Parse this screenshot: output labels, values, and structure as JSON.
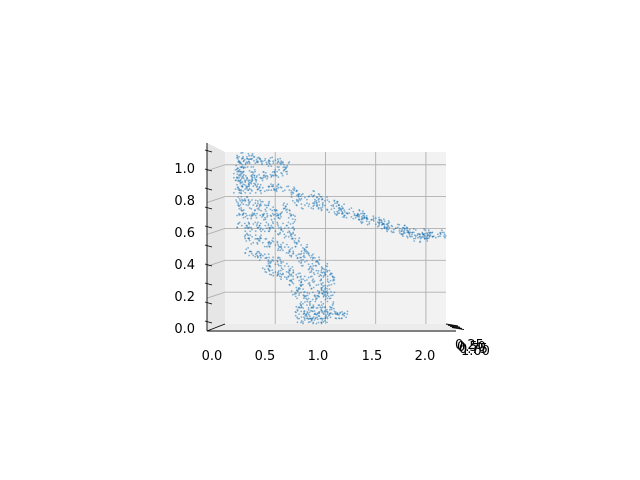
{
  "chart_data": {
    "type": "scatter",
    "projection": "3d",
    "series": [
      {
        "color": "#1f77b4",
        "marker_alpha": 0.55,
        "points": [
          [
            0.12,
            0.96
          ],
          [
            0.13,
            1.0
          ],
          [
            0.14,
            1.06
          ],
          [
            0.15,
            0.98
          ],
          [
            0.16,
            1.04
          ],
          [
            0.18,
            1.0
          ],
          [
            0.2,
            1.05
          ],
          [
            0.22,
            1.02
          ],
          [
            0.25,
            1.04
          ],
          [
            0.28,
            1.0
          ],
          [
            0.3,
            1.05
          ],
          [
            0.33,
            1.02
          ],
          [
            0.36,
            1.03
          ],
          [
            0.4,
            1.01
          ],
          [
            0.44,
            1.03
          ],
          [
            0.48,
            1.01
          ],
          [
            0.52,
            1.02
          ],
          [
            0.56,
            1.0
          ],
          [
            0.6,
            1.0
          ],
          [
            0.62,
            0.98
          ],
          [
            0.58,
            0.96
          ],
          [
            0.54,
            0.95
          ],
          [
            0.5,
            0.94
          ],
          [
            0.46,
            0.95
          ],
          [
            0.42,
            0.94
          ],
          [
            0.38,
            0.93
          ],
          [
            0.34,
            0.92
          ],
          [
            0.3,
            0.9
          ],
          [
            0.27,
            0.89
          ],
          [
            0.24,
            0.88
          ],
          [
            0.2,
            0.9
          ],
          [
            0.18,
            0.92
          ],
          [
            0.15,
            0.9
          ],
          [
            0.13,
            0.88
          ],
          [
            0.12,
            0.92
          ],
          [
            0.14,
            0.94
          ],
          [
            0.16,
            0.96
          ],
          [
            0.22,
            0.97
          ],
          [
            0.26,
            0.95
          ],
          [
            0.3,
            0.94
          ],
          [
            0.12,
            0.84
          ],
          [
            0.14,
            0.86
          ],
          [
            0.17,
            0.84
          ],
          [
            0.2,
            0.86
          ],
          [
            0.24,
            0.84
          ],
          [
            0.28,
            0.86
          ],
          [
            0.32,
            0.84
          ],
          [
            0.36,
            0.86
          ],
          [
            0.4,
            0.85
          ],
          [
            0.45,
            0.86
          ],
          [
            0.5,
            0.85
          ],
          [
            0.55,
            0.86
          ],
          [
            0.6,
            0.85
          ],
          [
            0.65,
            0.84
          ],
          [
            0.7,
            0.83
          ],
          [
            0.75,
            0.82
          ],
          [
            0.8,
            0.8
          ],
          [
            0.85,
            0.82
          ],
          [
            0.9,
            0.8
          ],
          [
            0.95,
            0.78
          ],
          [
            1.0,
            0.78
          ],
          [
            1.05,
            0.76
          ],
          [
            1.1,
            0.75
          ],
          [
            1.15,
            0.74
          ],
          [
            1.2,
            0.72
          ],
          [
            1.25,
            0.71
          ],
          [
            1.3,
            0.7
          ],
          [
            1.35,
            0.69
          ],
          [
            1.4,
            0.68
          ],
          [
            1.45,
            0.66
          ],
          [
            1.5,
            0.65
          ],
          [
            1.55,
            0.64
          ],
          [
            1.6,
            0.63
          ],
          [
            1.65,
            0.62
          ],
          [
            1.7,
            0.61
          ],
          [
            1.75,
            0.6
          ],
          [
            1.8,
            0.6
          ],
          [
            1.85,
            0.59
          ],
          [
            1.9,
            0.58
          ],
          [
            1.95,
            0.58
          ],
          [
            2.0,
            0.57
          ],
          [
            2.05,
            0.56
          ],
          [
            2.1,
            0.56
          ],
          [
            2.15,
            0.56
          ],
          [
            2.18,
            0.57
          ],
          [
            0.7,
            0.78
          ],
          [
            0.75,
            0.76
          ],
          [
            0.8,
            0.74
          ],
          [
            0.85,
            0.74
          ],
          [
            0.9,
            0.75
          ],
          [
            0.95,
            0.74
          ],
          [
            1.0,
            0.73
          ],
          [
            1.05,
            0.72
          ],
          [
            1.1,
            0.71
          ],
          [
            1.15,
            0.7
          ],
          [
            1.2,
            0.69
          ],
          [
            1.25,
            0.68
          ],
          [
            1.3,
            0.67
          ],
          [
            1.35,
            0.66
          ],
          [
            1.4,
            0.65
          ],
          [
            1.45,
            0.64
          ],
          [
            1.5,
            0.63
          ],
          [
            1.55,
            0.62
          ],
          [
            1.6,
            0.61
          ],
          [
            1.65,
            0.6
          ],
          [
            1.7,
            0.59
          ],
          [
            1.75,
            0.58
          ],
          [
            1.8,
            0.57
          ],
          [
            1.85,
            0.56
          ],
          [
            1.9,
            0.56
          ],
          [
            1.95,
            0.55
          ],
          [
            2.0,
            0.55
          ],
          [
            2.05,
            0.54
          ],
          [
            1.92,
            0.54
          ],
          [
            1.98,
            0.53
          ],
          [
            0.68,
            0.7
          ],
          [
            0.66,
            0.66
          ],
          [
            0.64,
            0.62
          ],
          [
            0.65,
            0.58
          ],
          [
            0.62,
            0.74
          ],
          [
            0.58,
            0.72
          ],
          [
            0.55,
            0.7
          ],
          [
            0.52,
            0.68
          ],
          [
            0.13,
            0.78
          ],
          [
            0.15,
            0.76
          ],
          [
            0.17,
            0.74
          ],
          [
            0.2,
            0.78
          ],
          [
            0.24,
            0.76
          ],
          [
            0.28,
            0.74
          ],
          [
            0.32,
            0.76
          ],
          [
            0.36,
            0.74
          ],
          [
            0.4,
            0.75
          ],
          [
            0.44,
            0.73
          ],
          [
            0.14,
            0.7
          ],
          [
            0.18,
            0.7
          ],
          [
            0.22,
            0.68
          ],
          [
            0.26,
            0.7
          ],
          [
            0.3,
            0.68
          ],
          [
            0.34,
            0.7
          ],
          [
            0.38,
            0.69
          ],
          [
            0.42,
            0.67
          ],
          [
            0.46,
            0.7
          ],
          [
            0.5,
            0.66
          ],
          [
            0.16,
            0.62
          ],
          [
            0.2,
            0.62
          ],
          [
            0.24,
            0.6
          ],
          [
            0.28,
            0.62
          ],
          [
            0.32,
            0.6
          ],
          [
            0.36,
            0.62
          ],
          [
            0.4,
            0.6
          ],
          [
            0.44,
            0.62
          ],
          [
            0.48,
            0.6
          ],
          [
            0.52,
            0.58
          ],
          [
            0.56,
            0.62
          ],
          [
            0.6,
            0.6
          ],
          [
            0.63,
            0.56
          ],
          [
            0.66,
            0.54
          ],
          [
            0.7,
            0.52
          ],
          [
            0.74,
            0.5
          ],
          [
            0.78,
            0.48
          ],
          [
            0.8,
            0.46
          ],
          [
            0.82,
            0.44
          ],
          [
            0.84,
            0.42
          ],
          [
            0.2,
            0.55
          ],
          [
            0.24,
            0.54
          ],
          [
            0.28,
            0.52
          ],
          [
            0.32,
            0.54
          ],
          [
            0.36,
            0.52
          ],
          [
            0.4,
            0.5
          ],
          [
            0.44,
            0.52
          ],
          [
            0.48,
            0.5
          ],
          [
            0.52,
            0.48
          ],
          [
            0.56,
            0.5
          ],
          [
            0.6,
            0.48
          ],
          [
            0.64,
            0.46
          ],
          [
            0.68,
            0.44
          ],
          [
            0.72,
            0.42
          ],
          [
            0.76,
            0.4
          ],
          [
            0.8,
            0.38
          ],
          [
            0.84,
            0.36
          ],
          [
            0.88,
            0.34
          ],
          [
            0.92,
            0.32
          ],
          [
            0.96,
            0.3
          ],
          [
            0.24,
            0.46
          ],
          [
            0.28,
            0.44
          ],
          [
            0.32,
            0.42
          ],
          [
            0.36,
            0.44
          ],
          [
            0.4,
            0.42
          ],
          [
            0.44,
            0.4
          ],
          [
            0.48,
            0.38
          ],
          [
            0.52,
            0.4
          ],
          [
            0.56,
            0.38
          ],
          [
            0.6,
            0.36
          ],
          [
            0.64,
            0.34
          ],
          [
            0.68,
            0.32
          ],
          [
            0.72,
            0.3
          ],
          [
            0.76,
            0.28
          ],
          [
            0.8,
            0.26
          ],
          [
            0.84,
            0.28
          ],
          [
            0.88,
            0.24
          ],
          [
            0.92,
            0.26
          ],
          [
            0.96,
            0.22
          ],
          [
            1.0,
            0.24
          ],
          [
            0.4,
            0.36
          ],
          [
            0.44,
            0.34
          ],
          [
            0.48,
            0.32
          ],
          [
            0.52,
            0.3
          ],
          [
            0.56,
            0.32
          ],
          [
            0.6,
            0.3
          ],
          [
            0.64,
            0.28
          ],
          [
            0.68,
            0.26
          ],
          [
            0.72,
            0.24
          ],
          [
            0.76,
            0.22
          ],
          [
            0.9,
            0.4
          ],
          [
            0.94,
            0.38
          ],
          [
            0.98,
            0.36
          ],
          [
            1.0,
            0.34
          ],
          [
            1.02,
            0.32
          ],
          [
            1.04,
            0.3
          ],
          [
            1.06,
            0.28
          ],
          [
            1.05,
            0.26
          ],
          [
            1.02,
            0.22
          ],
          [
            1.0,
            0.2
          ],
          [
            0.7,
            0.2
          ],
          [
            0.74,
            0.18
          ],
          [
            0.78,
            0.16
          ],
          [
            0.82,
            0.18
          ],
          [
            0.86,
            0.16
          ],
          [
            0.9,
            0.18
          ],
          [
            0.94,
            0.16
          ],
          [
            0.98,
            0.18
          ],
          [
            1.02,
            0.16
          ],
          [
            1.06,
            0.18
          ],
          [
            0.72,
            0.12
          ],
          [
            0.76,
            0.1
          ],
          [
            0.8,
            0.12
          ],
          [
            0.84,
            0.1
          ],
          [
            0.88,
            0.12
          ],
          [
            0.92,
            0.1
          ],
          [
            0.96,
            0.12
          ],
          [
            1.0,
            0.1
          ],
          [
            1.04,
            0.12
          ],
          [
            1.08,
            0.08
          ],
          [
            0.74,
            0.06
          ],
          [
            0.78,
            0.05
          ],
          [
            0.82,
            0.06
          ],
          [
            0.86,
            0.05
          ],
          [
            0.9,
            0.06
          ],
          [
            0.94,
            0.05
          ],
          [
            0.98,
            0.06
          ],
          [
            1.02,
            0.05
          ],
          [
            1.06,
            0.06
          ],
          [
            1.1,
            0.05
          ],
          [
            1.14,
            0.05
          ],
          [
            1.18,
            0.06
          ],
          [
            1.2,
            0.05
          ],
          [
            0.76,
            0.02
          ],
          [
            0.8,
            0.03
          ],
          [
            0.84,
            0.02
          ],
          [
            0.88,
            0.03
          ],
          [
            0.92,
            0.02
          ],
          [
            0.96,
            0.03
          ],
          [
            1.0,
            0.02
          ]
        ]
      }
    ],
    "x_axis": {
      "range": [
        0.0,
        2.2
      ],
      "ticks": [
        "0.0",
        "0.5",
        "1.0",
        "1.5",
        "2.0"
      ]
    },
    "y_axis": {
      "range": [
        0.0,
        1.0
      ],
      "ticks": [
        "0.0",
        "0.2",
        "0.4",
        "0.6",
        "0.8",
        "1.0"
      ]
    },
    "z_axis": {
      "ticks_overlapping": "0.25 0.50 0.75 1.00 (overlapping, edge-on)",
      "ticks": [
        "0.25",
        "0.50",
        "0.75",
        "1.00"
      ]
    },
    "grid": true
  }
}
